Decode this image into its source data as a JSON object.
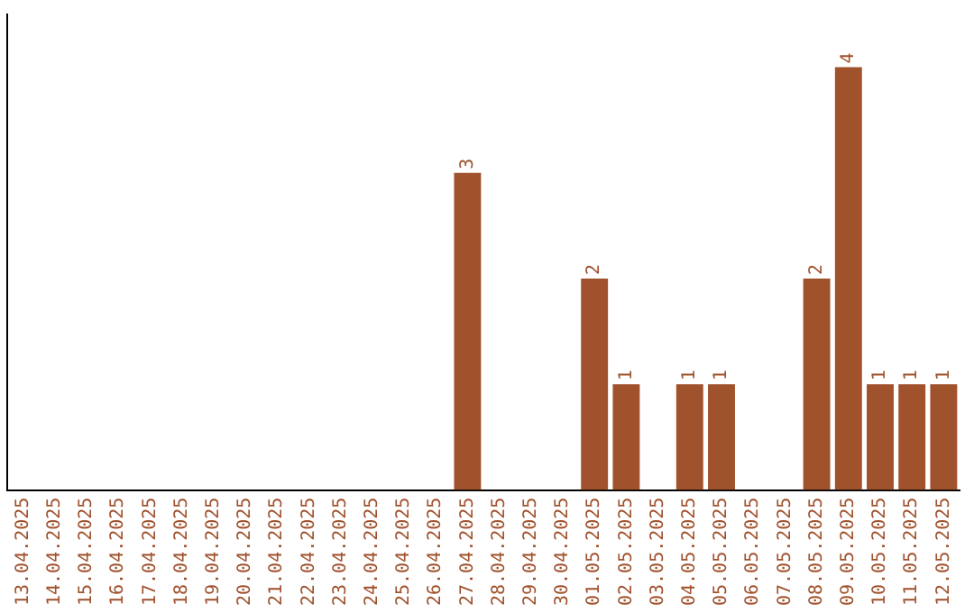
{
  "chart_data": {
    "type": "bar",
    "categories": [
      "13.04.2025",
      "14.04.2025",
      "15.04.2025",
      "16.04.2025",
      "17.04.2025",
      "18.04.2025",
      "19.04.2025",
      "20.04.2025",
      "21.04.2025",
      "22.04.2025",
      "23.04.2025",
      "24.04.2025",
      "25.04.2025",
      "26.04.2025",
      "27.04.2025",
      "28.04.2025",
      "29.04.2025",
      "30.04.2025",
      "01.05.2025",
      "02.05.2025",
      "03.05.2025",
      "04.05.2025",
      "05.05.2025",
      "06.05.2025",
      "07.05.2025",
      "08.05.2025",
      "09.05.2025",
      "10.05.2025",
      "11.05.2025",
      "12.05.2025"
    ],
    "values": [
      null,
      null,
      null,
      null,
      null,
      null,
      null,
      null,
      null,
      null,
      null,
      null,
      null,
      null,
      3,
      null,
      null,
      null,
      2,
      1,
      null,
      1,
      1,
      null,
      null,
      2,
      4,
      1,
      1,
      1
    ],
    "value_labels": [
      null,
      null,
      null,
      null,
      null,
      null,
      null,
      null,
      null,
      null,
      null,
      null,
      null,
      null,
      "3",
      null,
      null,
      null,
      "2",
      "1",
      null,
      "1",
      "1",
      null,
      null,
      "2",
      "4",
      "1",
      "1",
      "1"
    ],
    "color": "#a0522d",
    "grid": false,
    "legend": false,
    "tick_labels": "x"
  }
}
